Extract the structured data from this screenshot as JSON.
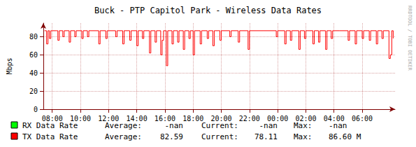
{
  "chart_data": {
    "type": "line",
    "title": "Buck - PTP Capitol Park - Wireless Data Rates",
    "y_label": "Mbps",
    "watermark": "RRDTOOL / TOBI OETIKER",
    "legend_fields": [
      "Average:",
      "Current:",
      "Max:"
    ],
    "xlim": [
      7.37,
      32.33
    ],
    "xticks": [
      {
        "value": 8,
        "label": "08:00"
      },
      {
        "value": 10,
        "label": "10:00"
      },
      {
        "value": 12,
        "label": "12:00"
      },
      {
        "value": 14,
        "label": "14:00"
      },
      {
        "value": 16,
        "label": "16:00"
      },
      {
        "value": 18,
        "label": "18:00"
      },
      {
        "value": 20,
        "label": "20:00"
      },
      {
        "value": 22,
        "label": "22:00"
      },
      {
        "value": 24,
        "label": "00:00"
      },
      {
        "value": 26,
        "label": "02:00"
      },
      {
        "value": 28,
        "label": "04:00"
      },
      {
        "value": 30,
        "label": "06:00"
      }
    ],
    "ylim": [
      0,
      95
    ],
    "yticks": [
      0,
      20,
      40,
      60,
      80
    ],
    "grid": true,
    "series": [
      {
        "name": "RX Data Rate",
        "color": "#00ff00",
        "x": [],
        "values": [],
        "average": "-nan",
        "current": "-nan",
        "max": "-nan"
      },
      {
        "name": "TX Data Rate",
        "color": "#ff0000",
        "x": [
          7.45,
          7.6,
          7.7,
          7.8,
          7.9,
          8.3,
          8.4,
          8.5,
          8.75,
          8.85,
          9.2,
          9.3,
          9.6,
          9.7,
          10.1,
          10.2,
          10.5,
          10.6,
          11.3,
          11.4,
          11.8,
          11.9,
          12.5,
          12.6,
          13.0,
          13.1,
          13.5,
          13.6,
          14.0,
          14.1,
          14.4,
          14.5,
          14.9,
          15.0,
          15.3,
          15.4,
          15.7,
          15.8,
          15.9,
          16.1,
          16.2,
          16.5,
          16.6,
          16.9,
          17.0,
          17.3,
          17.4,
          17.7,
          17.8,
          18.0,
          18.1,
          18.5,
          18.6,
          19.0,
          19.1,
          19.4,
          19.5,
          19.9,
          20.0,
          20.6,
          20.7,
          21.2,
          21.3,
          21.9,
          22.0,
          23.0,
          23.9,
          24.0,
          24.5,
          24.6,
          24.9,
          25.0,
          25.5,
          25.6,
          25.9,
          26.0,
          26.5,
          26.6,
          26.9,
          27.0,
          27.4,
          27.5,
          27.8,
          27.9,
          28.4,
          29.0,
          29.1,
          29.5,
          29.6,
          30.0,
          30.1,
          30.5,
          30.6,
          31.0,
          31.1,
          31.4,
          31.5,
          31.9,
          32.0,
          32.1,
          32.2
        ],
        "values": [
          86.6,
          72,
          86.6,
          78,
          86.6,
          86.6,
          76,
          86.6,
          80,
          86.6,
          74,
          86.6,
          80,
          86.6,
          78,
          86.6,
          80,
          86.6,
          72,
          86.6,
          78,
          86.6,
          80,
          86.6,
          72,
          86.6,
          76,
          86.6,
          70,
          86.6,
          78,
          86.6,
          62,
          86.6,
          74,
          86.6,
          60,
          76,
          86.6,
          48,
          86.6,
          72,
          86.6,
          74,
          86.6,
          66,
          86.6,
          78,
          86.6,
          60,
          86.6,
          72,
          86.6,
          78,
          86.6,
          70,
          86.6,
          76,
          86.6,
          80,
          86.6,
          74,
          86.6,
          66,
          86.6,
          86.6,
          80,
          86.6,
          72,
          86.6,
          76,
          86.6,
          66,
          86.6,
          78,
          86.6,
          72,
          86.6,
          74,
          86.6,
          66,
          86.6,
          78,
          86.6,
          86.6,
          76,
          86.6,
          72,
          86.6,
          78,
          86.6,
          76,
          86.6,
          72,
          86.6,
          78,
          86.6,
          56,
          60,
          86.6,
          78.11
        ],
        "average": "82.59",
        "current": "78.11",
        "max": "86.60 M"
      }
    ]
  }
}
